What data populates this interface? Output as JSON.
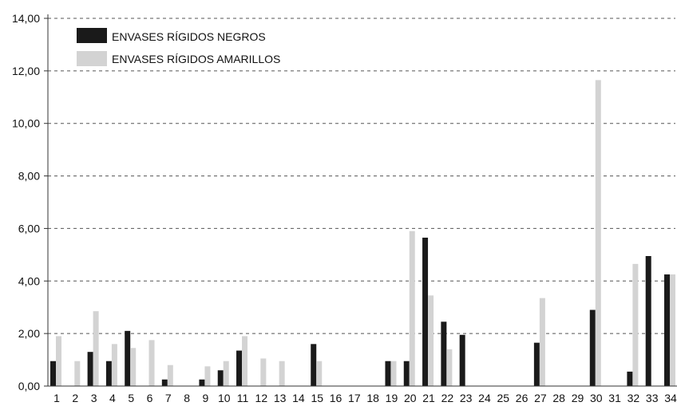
{
  "chart_data": {
    "type": "bar",
    "title": "",
    "xlabel": "",
    "ylabel": "",
    "ylim": [
      0,
      14
    ],
    "y_ticks": [
      "0,00",
      "2,00",
      "4,00",
      "6,00",
      "8,00",
      "10,00",
      "12,00",
      "14,00"
    ],
    "categories": [
      "1",
      "2",
      "3",
      "4",
      "5",
      "6",
      "7",
      "8",
      "9",
      "10",
      "11",
      "12",
      "13",
      "14",
      "15",
      "16",
      "17",
      "18",
      "19",
      "20",
      "21",
      "22",
      "23",
      "24",
      "25",
      "26",
      "27",
      "28",
      "29",
      "30",
      "31",
      "32",
      "33",
      "34"
    ],
    "grid": true,
    "legend_position": "top-left",
    "series": [
      {
        "name": "ENVASES RÍGIDOS NEGROS",
        "color": "#1a1a1a",
        "values": [
          0.95,
          0,
          1.3,
          0.95,
          2.1,
          0,
          0.25,
          0,
          0.25,
          0.6,
          1.35,
          0,
          0,
          0,
          1.6,
          0,
          0,
          0,
          0.95,
          0.95,
          5.65,
          2.45,
          1.95,
          0,
          0,
          0,
          1.65,
          0,
          0,
          2.9,
          0,
          0.55,
          4.95,
          4.25
        ]
      },
      {
        "name": "ENVASES RÍGIDOS AMARILLOS",
        "color": "#d3d3d3",
        "values": [
          1.9,
          0.95,
          2.85,
          1.6,
          1.45,
          1.75,
          0.8,
          0,
          0.75,
          0.95,
          1.9,
          1.05,
          0.95,
          0,
          0.95,
          0,
          0,
          0,
          0.95,
          5.9,
          3.45,
          1.4,
          0,
          0,
          0,
          0,
          3.35,
          0,
          0,
          11.65,
          0,
          4.65,
          0,
          4.25
        ]
      }
    ]
  }
}
